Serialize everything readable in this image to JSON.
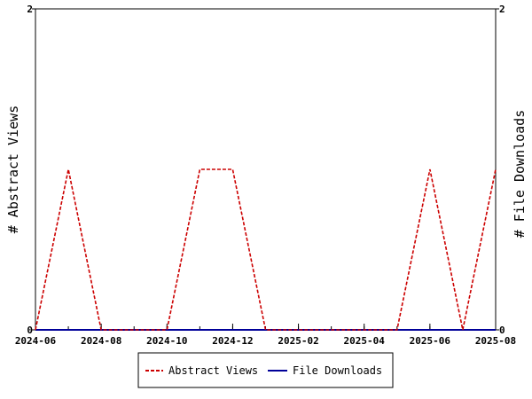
{
  "chart_data": {
    "type": "line",
    "ylabel_left": "# Abstract Views",
    "ylabel_right": "# File Downloads",
    "xlim": [
      "2024-06",
      "2025-08"
    ],
    "ylim_left": [
      0,
      2
    ],
    "ylim_right": [
      0,
      2
    ],
    "x_ticks": [
      "2024-06",
      "2024-08",
      "2024-10",
      "2024-12",
      "2025-02",
      "2025-04",
      "2025-06",
      "2025-08"
    ],
    "y_ticks_left": [
      "0",
      "2"
    ],
    "y_ticks_right": [
      "0",
      "2"
    ],
    "x": [
      "2024-06",
      "2024-07",
      "2024-08",
      "2024-09",
      "2024-10",
      "2024-11",
      "2024-12",
      "2025-01",
      "2025-02",
      "2025-03",
      "2025-04",
      "2025-05",
      "2025-06",
      "2025-07",
      "2025-08"
    ],
    "series": [
      {
        "name": "Abstract Views",
        "axis": "left",
        "color": "#cc0000",
        "dash": "dashed",
        "values": [
          0,
          1,
          0,
          0,
          0,
          1,
          1,
          0,
          0,
          0,
          0,
          0,
          1,
          0,
          1
        ]
      },
      {
        "name": "File Downloads",
        "axis": "right",
        "color": "#000099",
        "dash": "solid",
        "values": [
          0,
          0,
          0,
          0,
          0,
          0,
          0,
          0,
          0,
          0,
          0,
          0,
          0,
          0,
          0
        ]
      }
    ],
    "grid": false,
    "legend_position": "bottom"
  }
}
